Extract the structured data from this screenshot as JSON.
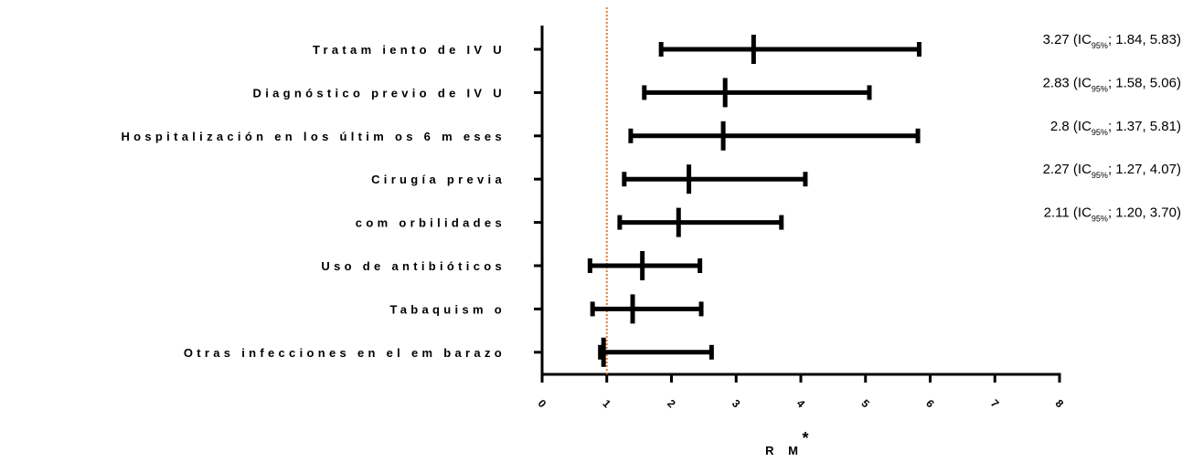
{
  "chart_data": {
    "type": "forest",
    "xlabel": "R M",
    "xlabel_suffix": "*",
    "xlim": [
      0,
      8
    ],
    "x_ticks": [
      "0",
      "1",
      "2",
      "3",
      "4",
      "5",
      "6",
      "7",
      "8"
    ],
    "reference_line": 1,
    "reference_color": "#e07b39",
    "mark_color": "#000000",
    "rows": [
      {
        "label": "Tratam iento de IV U",
        "estimate": 3.27,
        "lower": 1.84,
        "upper": 5.83,
        "annotation": {
          "est": "3.27 (IC",
          "sub": "95%",
          "rest": "; 1.84, 5.83)"
        }
      },
      {
        "label": "Diagnóstico previo de IV U",
        "estimate": 2.83,
        "lower": 1.58,
        "upper": 5.06,
        "annotation": {
          "est": "2.83 (IC",
          "sub": "95%",
          "rest": "; 1.58, 5.06)"
        }
      },
      {
        "label": "Hospitalización en los últim os 6 m eses",
        "estimate": 2.8,
        "lower": 1.37,
        "upper": 5.81,
        "annotation": {
          "est": "2.8 (IC",
          "sub": "95%",
          "rest": "; 1.37, 5.81)"
        }
      },
      {
        "label": "Cirugía previa",
        "estimate": 2.27,
        "lower": 1.27,
        "upper": 4.07,
        "annotation": {
          "est": "2.27 (IC",
          "sub": "95%",
          "rest": "; 1.27, 4.07)"
        }
      },
      {
        "label": "com orbilidades",
        "estimate": 2.11,
        "lower": 1.2,
        "upper": 3.7,
        "annotation": {
          "est": "2.11 (IC",
          "sub": "95%",
          "rest": "; 1.20, 3.70)"
        }
      },
      {
        "label": "Uso de antibióticos",
        "estimate": 1.55,
        "lower": 0.74,
        "upper": 2.44,
        "annotation": null
      },
      {
        "label": "Tabaquism o",
        "estimate": 1.4,
        "lower": 0.78,
        "upper": 2.46,
        "annotation": null
      },
      {
        "label": "Otras infecciones en el em barazo",
        "estimate": 0.95,
        "lower": 0.9,
        "upper": 2.62,
        "annotation": null
      }
    ]
  }
}
